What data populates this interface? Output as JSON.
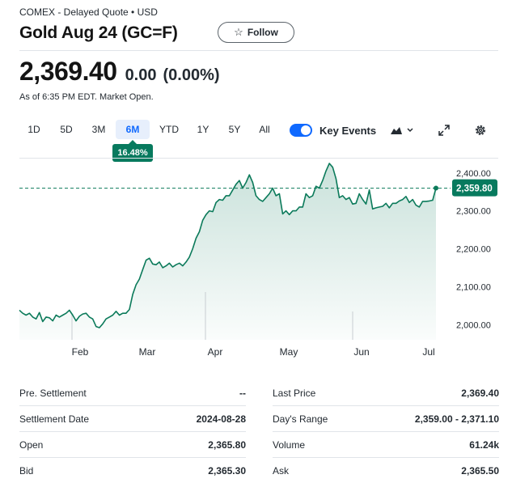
{
  "header": {
    "meta": "COMEX - Delayed Quote • USD",
    "title": "Gold Aug 24 (GC=F)",
    "follow_label": "Follow"
  },
  "quote": {
    "price": "2,369.40",
    "change": "0.00",
    "change_pct": "(0.00%)",
    "as_of": "As of 6:35 PM EDT. Market Open."
  },
  "range_tabs": [
    "1D",
    "5D",
    "3M",
    "6M",
    "YTD",
    "1Y",
    "5Y",
    "All"
  ],
  "active_range": "6M",
  "range_return": "16.48%",
  "controls": {
    "key_events_label": "Key Events",
    "key_events_on": true,
    "icons": [
      "chart-type-icon",
      "chevron-down-icon",
      "expand-icon",
      "gear-icon"
    ]
  },
  "colors": {
    "line": "#0b7a5a",
    "badge": "#077a5e",
    "accent": "#0f69ff"
  },
  "chart_data": {
    "type": "area",
    "x_tick_labels": [
      "Feb",
      "Mar",
      "Apr",
      "May",
      "Jun",
      "Jul"
    ],
    "y_tick_labels": [
      "2,400.00",
      "2,300.00",
      "2,200.00",
      "2,100.00",
      "2,000.00"
    ],
    "y_ticks": [
      2400,
      2300,
      2200,
      2100,
      2000
    ],
    "ylim": [
      1960,
      2440
    ],
    "reference_line": 2359.8,
    "reference_label": "2,359.80",
    "series": [
      {
        "values": [
          2038,
          2030,
          2025,
          2030,
          2020,
          2015,
          2032,
          2008,
          2020,
          2018,
          2010,
          2025,
          2020,
          2025,
          2030,
          2038,
          2025,
          2010,
          2022,
          2028,
          2030,
          2020,
          2015,
          1995,
          1992,
          2002,
          2015,
          2020,
          2025,
          2035,
          2025,
          2030,
          2030,
          2040,
          2080,
          2105,
          2120,
          2145,
          2170,
          2175,
          2160,
          2158,
          2165,
          2150,
          2155,
          2162,
          2152,
          2158,
          2162,
          2155,
          2165,
          2178,
          2200,
          2228,
          2245,
          2275,
          2290,
          2300,
          2298,
          2322,
          2330,
          2328,
          2340,
          2340,
          2355,
          2370,
          2380,
          2360,
          2375,
          2395,
          2375,
          2340,
          2330,
          2325,
          2335,
          2345,
          2360,
          2340,
          2345,
          2292,
          2300,
          2290,
          2300,
          2300,
          2310,
          2310,
          2345,
          2335,
          2340,
          2365,
          2360,
          2380,
          2405,
          2425,
          2415,
          2385,
          2335,
          2340,
          2330,
          2335,
          2318,
          2320,
          2345,
          2330,
          2318,
          2355,
          2305,
          2308,
          2310,
          2312,
          2320,
          2308,
          2320,
          2320,
          2326,
          2330,
          2338,
          2322,
          2330,
          2315,
          2310,
          2325,
          2325,
          2326,
          2328,
          2360
        ]
      }
    ],
    "grid": false
  },
  "stats": {
    "left": [
      {
        "label": "Pre. Settlement",
        "value": "--"
      },
      {
        "label": "Settlement Date",
        "value": "2024-08-28"
      },
      {
        "label": "Open",
        "value": "2,365.80"
      },
      {
        "label": "Bid",
        "value": "2,365.30"
      }
    ],
    "right": [
      {
        "label": "Last Price",
        "value": "2,369.40"
      },
      {
        "label": "Day's Range",
        "value": "2,359.00 - 2,371.10"
      },
      {
        "label": "Volume",
        "value": "61.24k"
      },
      {
        "label": "Ask",
        "value": "2,365.50"
      }
    ]
  }
}
